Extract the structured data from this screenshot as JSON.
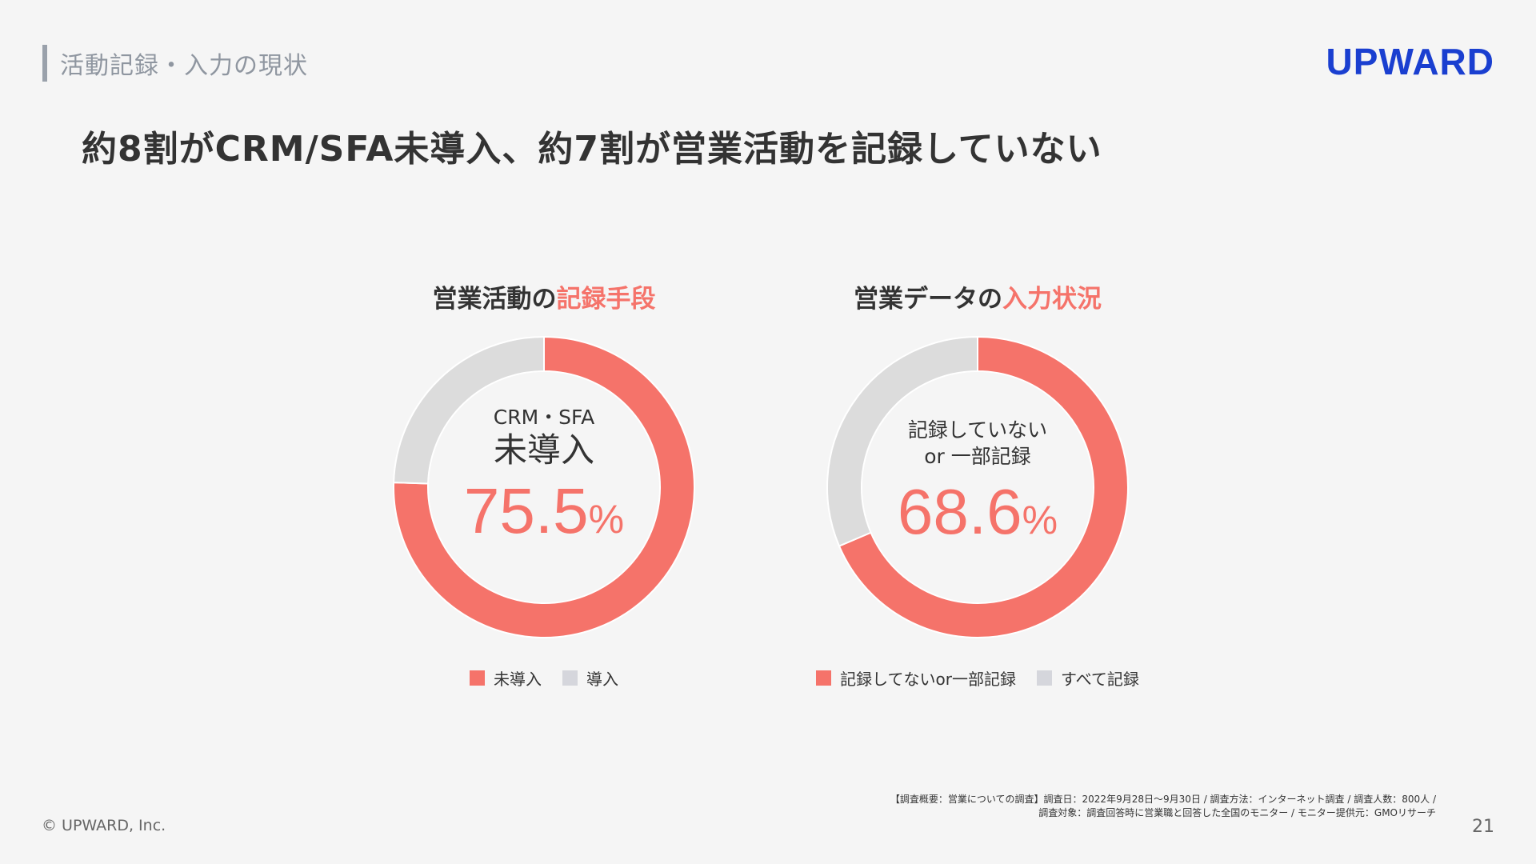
{
  "header": {
    "section_label": "活動記録・入力の現状",
    "logo": "UPWARD"
  },
  "title": "約8割がCRM/SFA未導入、約7割が営業活動を記録していない",
  "colors": {
    "accent": "#F5736A",
    "neutral": "#DCDCDC",
    "legend_neutral": "#D5D6DC",
    "logo": "#1A3FD0"
  },
  "chart_data": [
    {
      "type": "pie",
      "title_plain": "営業活動の",
      "title_highlight": "記録手段",
      "center_sub": "CRM・SFA",
      "center_big": "未導入",
      "center_value": "75.5",
      "center_unit": "%",
      "slices": [
        {
          "label": "未導入",
          "value": 75.5,
          "color": "#F5736A"
        },
        {
          "label": "導入",
          "value": 24.5,
          "color": "#DCDCDC"
        }
      ],
      "legend_placement": "bottom"
    },
    {
      "type": "pie",
      "title_plain": "営業データの",
      "title_highlight": "入力状況",
      "center_line1": "記録していない",
      "center_line2": "or 一部記録",
      "center_value": "68.6",
      "center_unit": "%",
      "slices": [
        {
          "label": "記録してないor一部記録",
          "value": 68.6,
          "color": "#F5736A"
        },
        {
          "label": "すべて記録",
          "value": 31.4,
          "color": "#DCDCDC"
        }
      ],
      "legend_placement": "bottom"
    }
  ],
  "footnote": {
    "line1": "【調査概要：営業についての調査】調査日：2022年9月28日〜9月30日 / 調査方法：インターネット調査 / 調査人数：800人 /",
    "line2": "調査対象：調査回答時に営業職と回答した全国のモニター / モニター提供元：GMOリサーチ"
  },
  "footer": {
    "copyright": "© UPWARD, Inc.",
    "page_number": "21"
  }
}
